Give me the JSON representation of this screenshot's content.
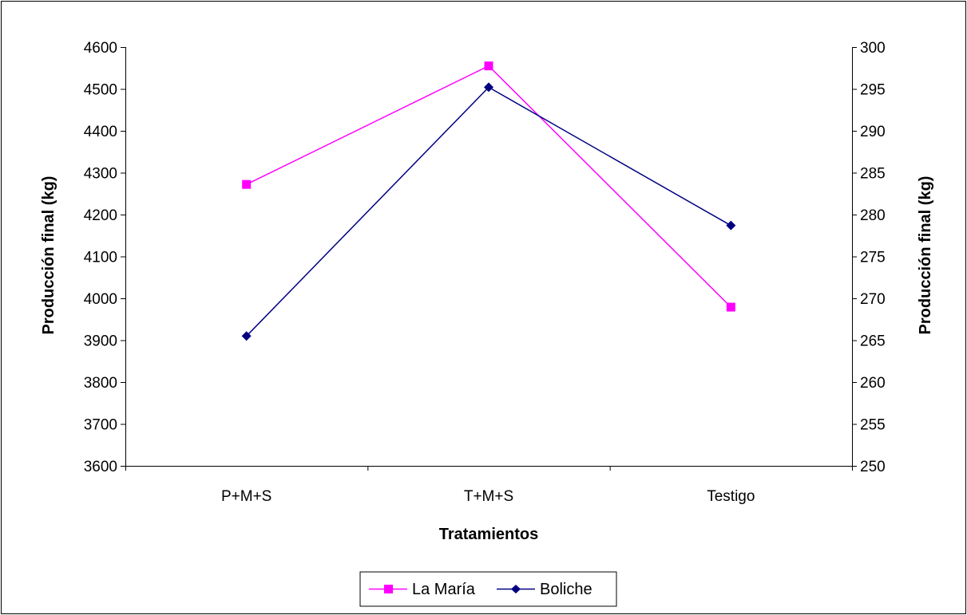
{
  "chart_data": {
    "type": "line",
    "categories": [
      "P+M+S",
      "T+M+S",
      "Testigo"
    ],
    "xlabel": "Tratamientos",
    "ylabel": "Producción final (kg)",
    "y2label": "Producción final (kg)",
    "ylim": [
      3600,
      4600
    ],
    "y2lim": [
      250,
      300
    ],
    "yticks": [
      "3600",
      "3700",
      "3800",
      "3900",
      "4000",
      "4100",
      "4200",
      "4300",
      "4400",
      "4500",
      "4600"
    ],
    "y2ticks": [
      "250",
      "255",
      "260",
      "265",
      "270",
      "275",
      "280",
      "285",
      "290",
      "295",
      "300"
    ],
    "grid": false,
    "legend": "bottom",
    "series": [
      {
        "name": "La María",
        "axis": "left",
        "values": [
          4272,
          4555,
          3979
        ],
        "color": "#ff00ff",
        "marker": "square"
      },
      {
        "name": "Boliche",
        "axis": "right",
        "values": [
          265.5,
          295.2,
          278.7
        ],
        "color": "#000080",
        "marker": "diamond"
      }
    ]
  }
}
